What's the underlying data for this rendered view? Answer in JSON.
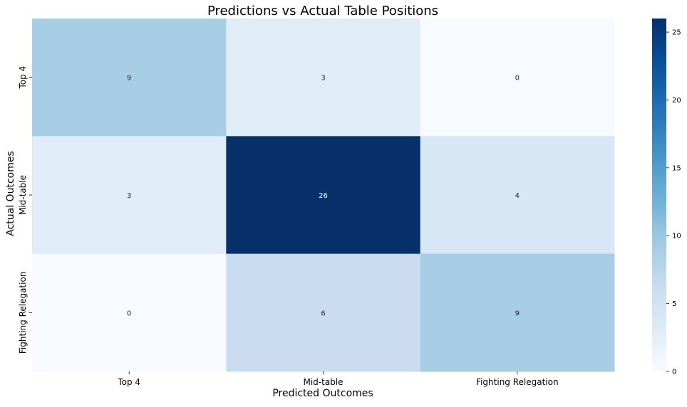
{
  "chart_data": {
    "type": "heatmap",
    "title": "Predictions vs Actual Table Positions",
    "xlabel": "Predicted Outcomes",
    "ylabel": "Actual Outcomes",
    "x_categories": [
      "Top 4",
      "Mid-table",
      "Fighting Relegation"
    ],
    "y_categories": [
      "Top 4",
      "Mid-table",
      "Fighting Relegation"
    ],
    "values": [
      [
        9,
        3,
        0
      ],
      [
        3,
        26,
        4
      ],
      [
        0,
        6,
        9
      ]
    ],
    "colorbar": {
      "min": 0,
      "max": 26,
      "ticks": [
        0,
        5,
        10,
        15,
        20,
        25
      ],
      "colormap": "Blues"
    },
    "annotations": true,
    "grid": false
  }
}
